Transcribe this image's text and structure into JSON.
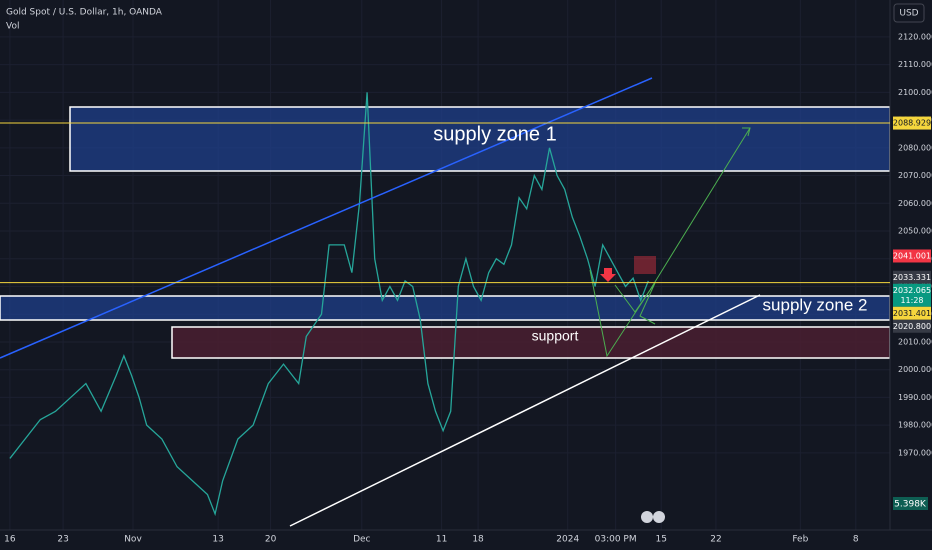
{
  "chart_data": {
    "type": "line",
    "title": "Gold Spot / U.S. Dollar, 1h, OANDA",
    "subtitle": "Vol",
    "currency": "USD",
    "x": [
      0,
      2,
      4,
      6,
      8,
      10,
      12,
      14,
      15,
      16,
      17,
      18,
      20,
      22,
      24,
      26,
      27,
      28,
      30,
      32,
      34,
      36,
      38,
      39,
      41,
      42,
      44,
      45,
      46,
      47,
      47.5,
      48,
      49,
      50,
      51,
      52,
      53,
      54,
      55,
      56,
      57,
      58,
      59,
      60,
      61,
      62,
      63,
      64,
      65,
      66,
      67,
      68,
      69,
      70,
      71,
      72,
      73,
      74,
      75,
      76,
      77,
      78,
      79,
      80,
      81,
      82,
      83,
      84
    ],
    "series": [
      {
        "color": "#26a69a",
        "values": [
          1968,
          1975,
          1982,
          1985,
          1990,
          1995,
          1985,
          1998,
          2005,
          1998,
          1990,
          1980,
          1975,
          1965,
          1960,
          1955,
          1948,
          1960,
          1975,
          1980,
          1995,
          2002,
          1995,
          2012,
          2020,
          2045,
          2045,
          2035,
          2060,
          2100,
          2070,
          2040,
          2025,
          2030,
          2025,
          2032,
          2030,
          2018,
          1995,
          1985,
          1978,
          1985,
          2030,
          2040,
          2030,
          2025,
          2035,
          2040,
          2038,
          2045,
          2062,
          2058,
          2070,
          2065,
          2080,
          2070,
          2065,
          2055,
          2048,
          2040,
          2030,
          2045,
          2040,
          2035,
          2030,
          2033,
          2025,
          2032
        ]
      }
    ],
    "xlim": [
      -1.3,
      115.8
    ],
    "ylim": [
      1942.2,
      2133.3
    ],
    "xticks": [
      {
        "value": 0,
        "label": "16"
      },
      {
        "value": 7,
        "label": "23"
      },
      {
        "value": 16.2,
        "label": "Nov"
      },
      {
        "value": 27.4,
        "label": "13"
      },
      {
        "value": 34.3,
        "label": "20"
      },
      {
        "value": 46.3,
        "label": "Dec"
      },
      {
        "value": 56.8,
        "label": "11"
      },
      {
        "value": 61.6,
        "label": "18"
      },
      {
        "value": 73.4,
        "label": "2024"
      },
      {
        "value": 79.7,
        "label": "03:00 PM"
      },
      {
        "value": 85.7,
        "label": "15"
      },
      {
        "value": 92.9,
        "label": "22"
      },
      {
        "value": 104,
        "label": "Feb"
      },
      {
        "value": 111.3,
        "label": "8"
      }
    ],
    "yticks": [
      {
        "value": 1970,
        "label": "1970.000"
      },
      {
        "value": 1980,
        "label": "1980.000"
      },
      {
        "value": 1990,
        "label": "1990.000"
      },
      {
        "value": 2000,
        "label": "2000.000"
      },
      {
        "value": 2010,
        "label": "2010.000"
      },
      {
        "value": 2020,
        "label": "2020.000"
      },
      {
        "value": 2030,
        "label": "2030.000"
      },
      {
        "value": 2040,
        "label": "2040.000"
      },
      {
        "value": 2050,
        "label": "2050.000"
      },
      {
        "value": 2060,
        "label": "2060.000"
      },
      {
        "value": 2070,
        "label": "2070.000"
      },
      {
        "value": 2080,
        "label": "2080.000"
      },
      {
        "value": 2090,
        "label": "2090.000"
      },
      {
        "value": 2100,
        "label": "2100.000"
      },
      {
        "value": 2110,
        "label": "2110.000"
      },
      {
        "value": 2120,
        "label": "2120.000"
      }
    ],
    "grid": true,
    "price_labels": [
      {
        "value": 2088.929,
        "label": "2088.929",
        "color": "#f5d63d",
        "line": true
      },
      {
        "value": 2041.001,
        "label": "2041.001",
        "color": "#f23645"
      },
      {
        "value": 2033.331,
        "label": "2033.331",
        "color": "#363a45"
      },
      {
        "value": 2032.065,
        "label": "2032.065",
        "color": "#089981",
        "clock": "11:28"
      },
      {
        "value": 2031.401,
        "label": "2031.401",
        "color": "#f5d63d",
        "line": true
      },
      {
        "value": 2020.8,
        "label": "2020.800",
        "color": "#363a45"
      }
    ],
    "annotations": [
      "supply zone 1",
      "supply zone 2",
      "support"
    ],
    "volume_label": "5.398K"
  }
}
